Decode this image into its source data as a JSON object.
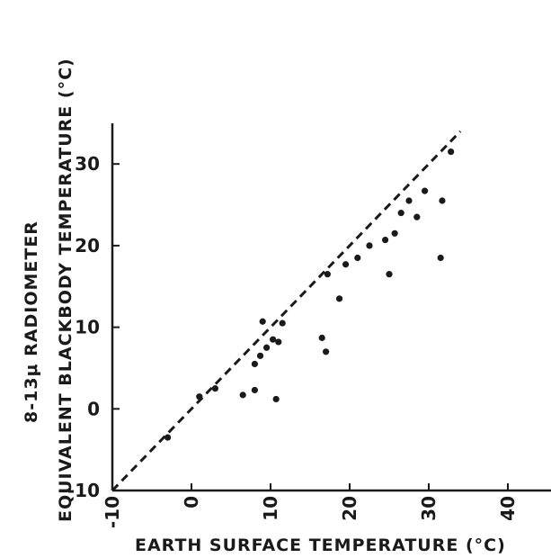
{
  "chart_data": {
    "type": "scatter",
    "title": "",
    "xlabel": "EARTH SURFACE TEMPERATURE (°C)",
    "ylabel_line1": "8-13μ  RADIOMETER",
    "ylabel_line2": "EQUIVALENT BLACKBODY TEMPERATURE (°C)",
    "xlim": [
      -10,
      45
    ],
    "ylim": [
      -10,
      35
    ],
    "x_ticks": [
      -10,
      0,
      10,
      20,
      30,
      40
    ],
    "x_tick_labels": [
      "-10",
      "0",
      "10",
      "20",
      "30",
      "40"
    ],
    "y_ticks": [
      -10,
      0,
      10,
      20,
      30
    ],
    "y_tick_labels": [
      "-10",
      "0",
      "10",
      "20",
      "30"
    ],
    "grid": false,
    "reference_line": {
      "style": "dashed",
      "x": [
        -10,
        34
      ],
      "y": [
        -10,
        34
      ]
    },
    "points": [
      {
        "x": -3,
        "y": -3.5
      },
      {
        "x": 1,
        "y": 1.5
      },
      {
        "x": 3,
        "y": 2.5
      },
      {
        "x": 6.5,
        "y": 1.7
      },
      {
        "x": 8,
        "y": 2.3
      },
      {
        "x": 8,
        "y": 5.5
      },
      {
        "x": 8.7,
        "y": 6.5
      },
      {
        "x": 9,
        "y": 10.7
      },
      {
        "x": 9.5,
        "y": 7.5
      },
      {
        "x": 10.3,
        "y": 8.5
      },
      {
        "x": 11,
        "y": 8.2
      },
      {
        "x": 10.7,
        "y": 1.2
      },
      {
        "x": 11.5,
        "y": 10.5
      },
      {
        "x": 16.5,
        "y": 8.7
      },
      {
        "x": 17,
        "y": 7
      },
      {
        "x": 17.2,
        "y": 16.5
      },
      {
        "x": 18.7,
        "y": 13.5
      },
      {
        "x": 19.5,
        "y": 17.7
      },
      {
        "x": 21,
        "y": 18.5
      },
      {
        "x": 22.5,
        "y": 20
      },
      {
        "x": 24.5,
        "y": 20.7
      },
      {
        "x": 25,
        "y": 16.5
      },
      {
        "x": 25.7,
        "y": 21.5
      },
      {
        "x": 26.5,
        "y": 24
      },
      {
        "x": 27.5,
        "y": 25.5
      },
      {
        "x": 28.5,
        "y": 23.5
      },
      {
        "x": 29.5,
        "y": 26.7
      },
      {
        "x": 31.5,
        "y": 18.5
      },
      {
        "x": 31.7,
        "y": 25.5
      },
      {
        "x": 32.8,
        "y": 31.5
      }
    ]
  }
}
